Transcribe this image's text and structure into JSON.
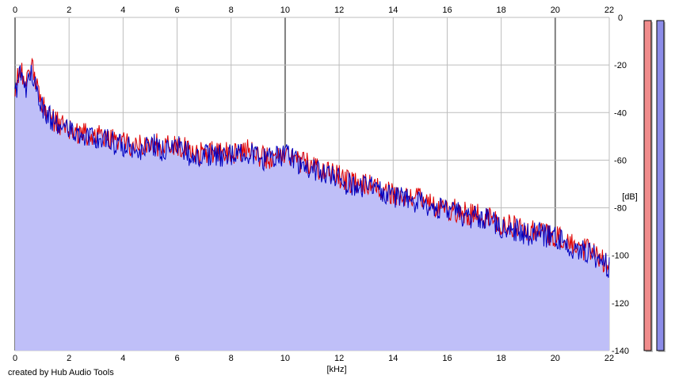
{
  "footer": {
    "credit": "created by Hub Audio Tools"
  },
  "chart_data": {
    "type": "area",
    "title": "",
    "xlabel": "[kHz]",
    "ylabel": "[dB]",
    "xlim": [
      0,
      22
    ],
    "ylim": [
      -140,
      0
    ],
    "x_ticks": [
      "0",
      "2",
      "4",
      "6",
      "8",
      "10",
      "12",
      "14",
      "16",
      "18",
      "20",
      "22"
    ],
    "y_ticks": [
      "0",
      "-20",
      "-40",
      "-60",
      "-80",
      "-100",
      "-120",
      "-140"
    ],
    "grid": true,
    "legend": "none",
    "colors": {
      "fill": "#bfbff8",
      "channel_1": "#e00000",
      "channel_2": "#0000c0",
      "meter_1": "#f08c8c",
      "meter_2": "#8c8ce8",
      "grid_major": "#7f7f7f",
      "grid_minor": "#bdbdbd"
    },
    "series": [
      {
        "color": "#e00000",
        "x": [
          0,
          0.2,
          0.4,
          0.6,
          0.8,
          1,
          1.5,
          2,
          2.5,
          3,
          3.5,
          4,
          4.5,
          5,
          5.5,
          6,
          6.5,
          7,
          7.5,
          8,
          8.5,
          9,
          9.5,
          10,
          10.5,
          11,
          11.5,
          12,
          12.5,
          13,
          13.5,
          14,
          14.5,
          15,
          15.5,
          16,
          16.5,
          17,
          17.5,
          18,
          18.5,
          19,
          19.5,
          20,
          20.5,
          21,
          21.5,
          22
        ],
        "values": [
          -30,
          -20,
          -29,
          -21,
          -27,
          -36,
          -44,
          -47,
          -49,
          -50,
          -51,
          -53,
          -55,
          -52,
          -55,
          -53,
          -57,
          -57,
          -57,
          -57,
          -55,
          -58,
          -59,
          -56,
          -60,
          -63,
          -65,
          -67,
          -70,
          -70,
          -72,
          -74,
          -76,
          -76,
          -79,
          -80,
          -82,
          -83,
          -84,
          -87,
          -88,
          -90,
          -90,
          -92,
          -95,
          -97,
          -100,
          -104
        ]
      },
      {
        "color": "#0000c0",
        "x": [
          0,
          0.2,
          0.4,
          0.6,
          0.8,
          1,
          1.5,
          2,
          2.5,
          3,
          3.5,
          4,
          4.5,
          5,
          5.5,
          6,
          6.5,
          7,
          7.5,
          8,
          8.5,
          9,
          9.5,
          10,
          10.5,
          11,
          11.5,
          12,
          12.5,
          13,
          13.5,
          14,
          14.5,
          15,
          15.5,
          16,
          16.5,
          17,
          17.5,
          18,
          18.5,
          19,
          19.5,
          20,
          20.5,
          21,
          21.5,
          22
        ],
        "values": [
          -32,
          -22,
          -30,
          -22,
          -28,
          -38,
          -45,
          -48,
          -50,
          -51,
          -52,
          -54,
          -56,
          -53,
          -56,
          -54,
          -58,
          -58,
          -58,
          -58,
          -56,
          -59,
          -60,
          -57,
          -61,
          -64,
          -66,
          -68,
          -71,
          -71,
          -73,
          -75,
          -77,
          -77,
          -80,
          -81,
          -83,
          -84,
          -85,
          -88,
          -89,
          -91,
          -91,
          -93,
          -96,
          -98,
          -101,
          -105
        ]
      }
    ],
    "meters": [
      {
        "color": "#f08c8c",
        "level": 1.0
      },
      {
        "color": "#8c8ce8",
        "level": 1.0
      }
    ]
  }
}
